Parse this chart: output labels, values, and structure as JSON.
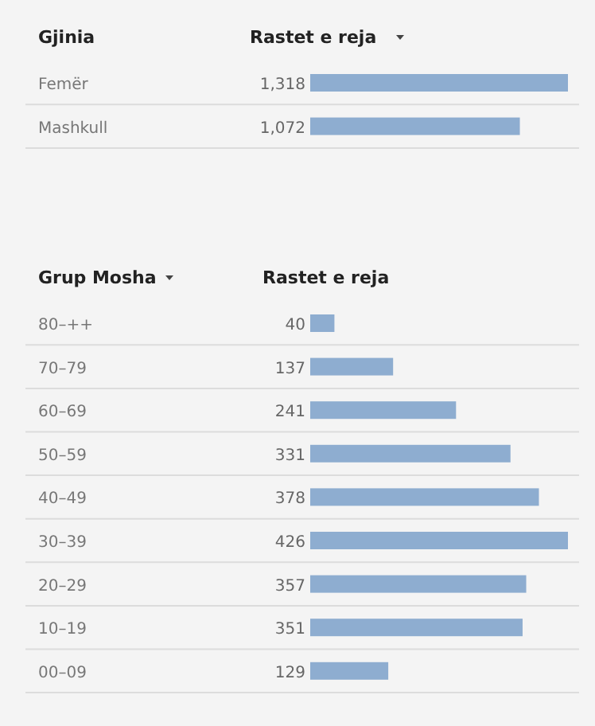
{
  "chart_data": [
    {
      "type": "bar",
      "orientation": "horizontal",
      "ylabel": "Gjinia",
      "xlabel": "Rastet e reja",
      "categories": [
        "Femër",
        "Mashkull"
      ],
      "values": [
        1318,
        1072
      ],
      "value_labels": [
        "1,318",
        "1,072"
      ],
      "color": "#8eadd0"
    },
    {
      "type": "bar",
      "orientation": "horizontal",
      "ylabel": "Grup Mosha",
      "xlabel": "Rastet e reja",
      "categories": [
        "80–++",
        "70–79",
        "60–69",
        "50–59",
        "40–49",
        "30–39",
        "20–29",
        "10–19",
        "00–09"
      ],
      "values": [
        40,
        137,
        241,
        331,
        378,
        426,
        357,
        351,
        129
      ],
      "data_labels": true,
      "color": "#8eadd0"
    }
  ]
}
